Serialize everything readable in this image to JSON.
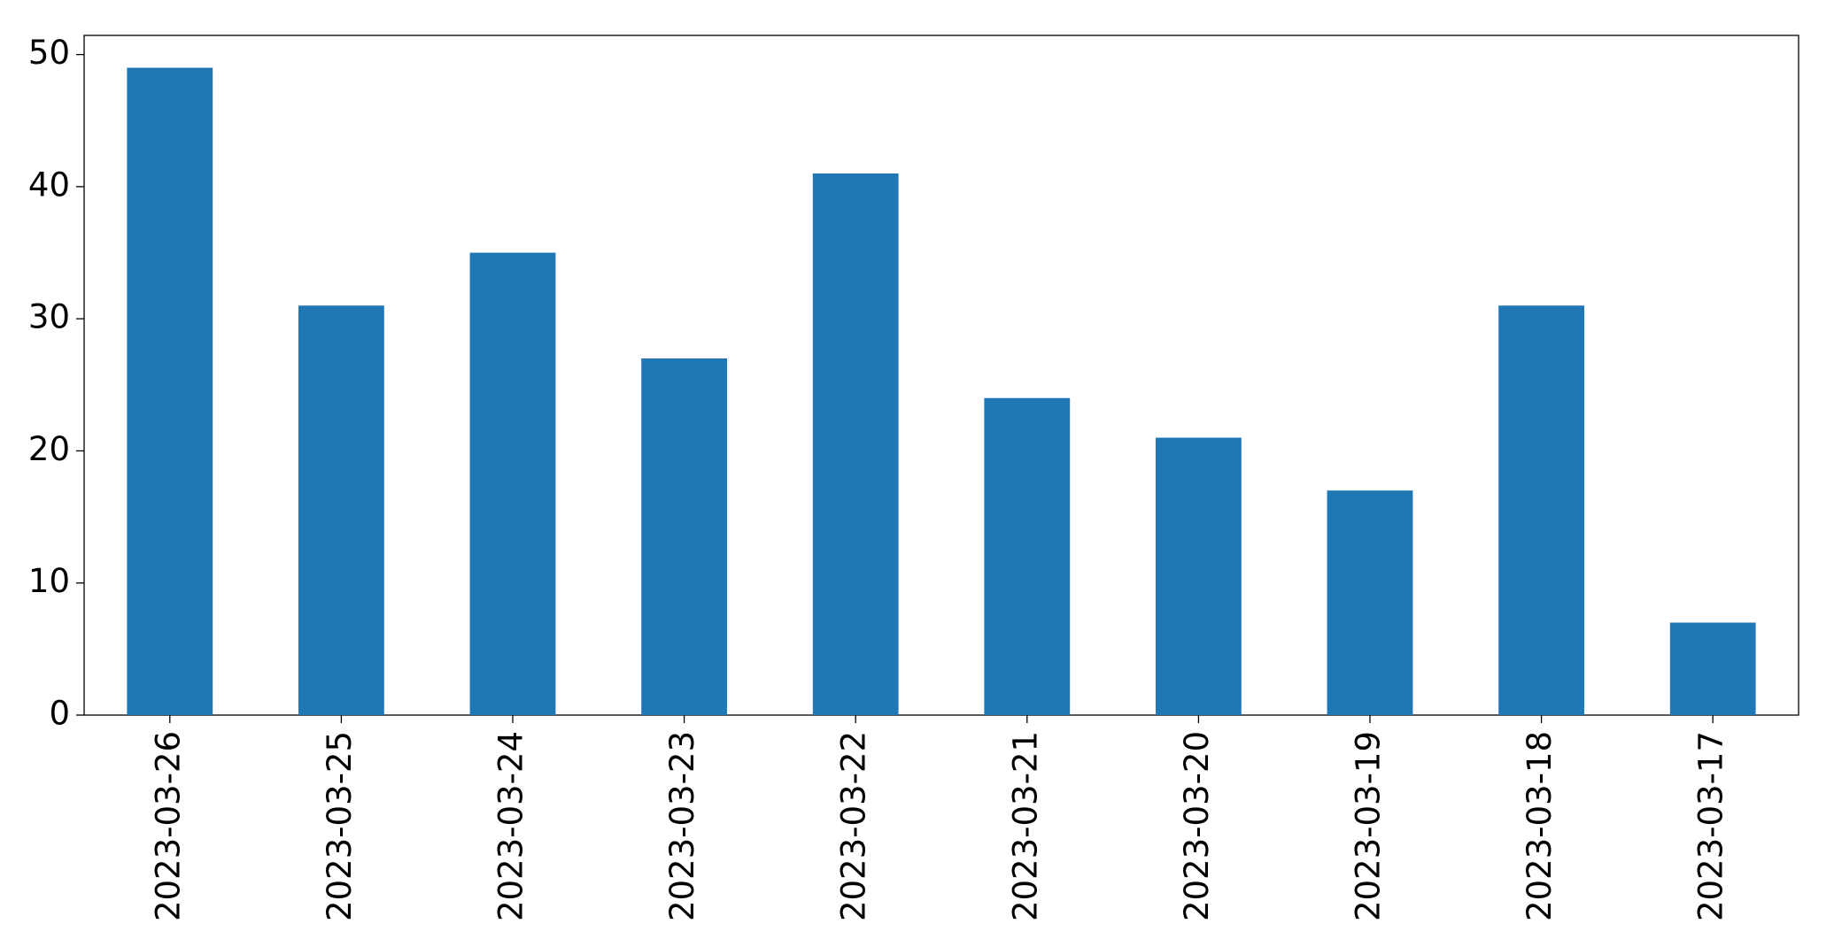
{
  "chart_data": {
    "type": "bar",
    "categories": [
      "2023-03-26",
      "2023-03-25",
      "2023-03-24",
      "2023-03-23",
      "2023-03-22",
      "2023-03-21",
      "2023-03-20",
      "2023-03-19",
      "2023-03-18",
      "2023-03-17"
    ],
    "values": [
      49,
      31,
      35,
      27,
      41,
      24,
      21,
      17,
      31,
      7
    ],
    "color": "#1f77b4",
    "ylim": [
      0,
      51.45
    ],
    "yticks": [
      0,
      10,
      20,
      30,
      40,
      50
    ],
    "grid": false
  }
}
